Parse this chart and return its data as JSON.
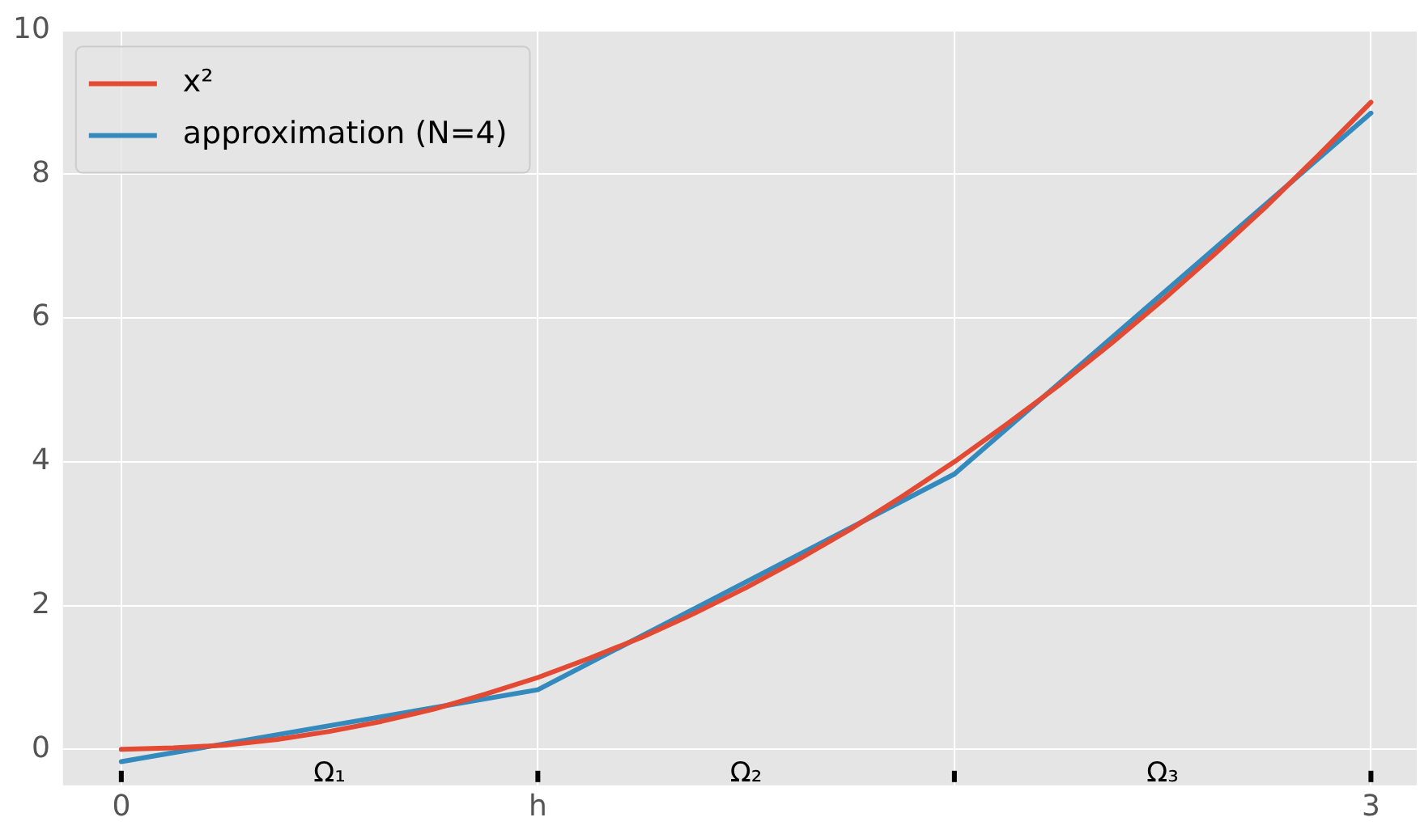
{
  "chart_data": {
    "type": "line",
    "x": [
      0,
      0.125,
      0.25,
      0.375,
      0.5,
      0.625,
      0.75,
      0.875,
      1,
      1.125,
      1.25,
      1.375,
      1.5,
      1.625,
      1.75,
      1.875,
      2,
      2.125,
      2.25,
      2.375,
      2.5,
      2.625,
      2.75,
      2.875,
      3
    ],
    "series": [
      {
        "name": "x²",
        "color": "#e24a33",
        "values": [
          0,
          0.02,
          0.06,
          0.14,
          0.25,
          0.39,
          0.56,
          0.77,
          1,
          1.27,
          1.56,
          1.89,
          2.25,
          2.64,
          3.06,
          3.52,
          4,
          4.52,
          5.06,
          5.64,
          6.25,
          6.89,
          7.56,
          8.27,
          9
        ]
      },
      {
        "name": "approximation (N=4)",
        "color": "#348abd",
        "x": [
          0,
          1,
          2,
          3
        ],
        "values": [
          -0.17,
          0.83,
          3.83,
          8.85
        ]
      }
    ],
    "xlim": [
      -0.14,
      3.11
    ],
    "xticks": [
      0,
      {
        "value": 1,
        "label": "h"
      },
      {
        "value": 2,
        "label": null
      },
      3
    ],
    "ylim": [
      -0.5,
      10
    ],
    "yticks": [
      0,
      2,
      4,
      6,
      8,
      10
    ],
    "annotations": [
      "Ω₁",
      "Ω₂",
      "Ω₃"
    ],
    "grid": true,
    "legend": "top left",
    "marker": "none",
    "line_style": "solid"
  }
}
